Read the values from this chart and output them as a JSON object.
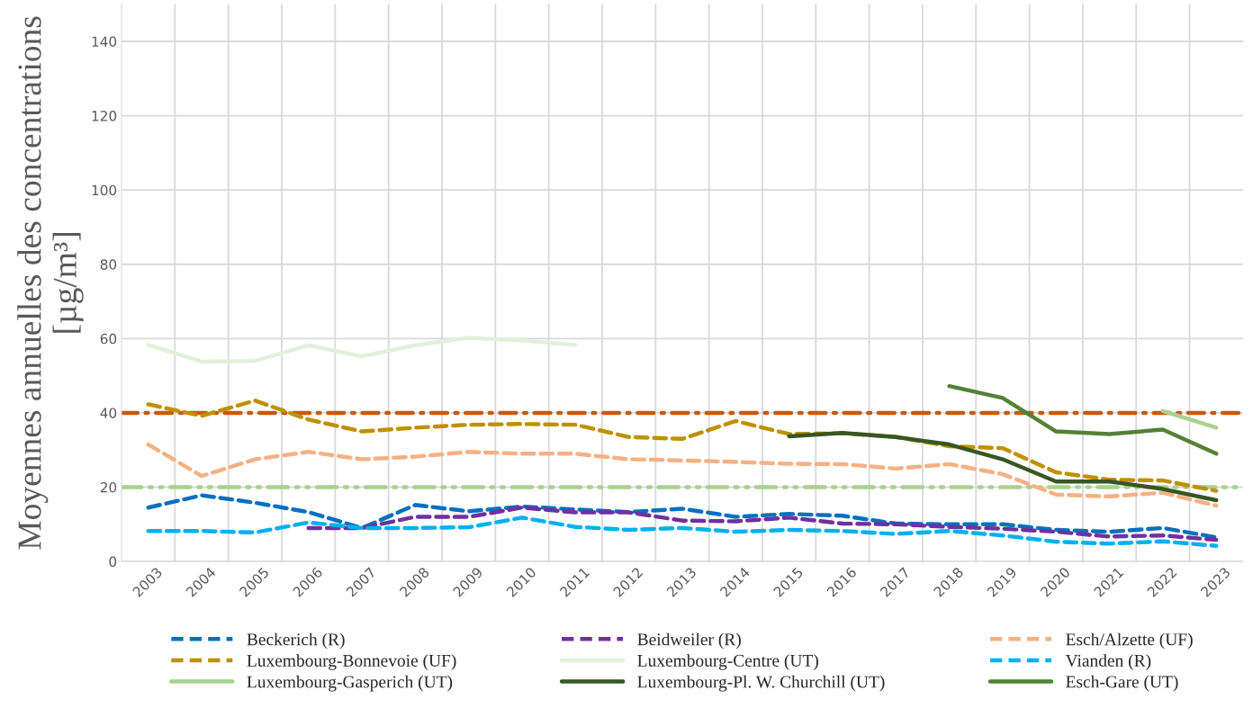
{
  "chart_data": {
    "type": "line",
    "ylabel": "Moyennes annuelles des concentrations\n[µg/m³]",
    "categories": [
      "2003",
      "2004",
      "2005",
      "2006",
      "2007",
      "2008",
      "2009",
      "2010",
      "2011",
      "2012",
      "2013",
      "2014",
      "2015",
      "2016",
      "2017",
      "2018",
      "2019",
      "2020",
      "2021",
      "2022",
      "2023"
    ],
    "ylim": [
      0,
      150
    ],
    "yticks": [
      0,
      20,
      40,
      60,
      80,
      100,
      120,
      140
    ],
    "grid": true,
    "legend": "bottom",
    "series": [
      {
        "name": "Beckerich (R)",
        "color": "#0070c0",
        "line_style": "dashed",
        "values": [
          14.5,
          17.8,
          15.8,
          13.3,
          9,
          15.2,
          13.5,
          14.8,
          14,
          13.3,
          14.2,
          12,
          12.8,
          12.3,
          10.2,
          10,
          10,
          8.5,
          8,
          9,
          6.5
        ]
      },
      {
        "name": "Beidweiler (R)",
        "color": "#7030a0",
        "line_style": "dashed",
        "values": [
          null,
          null,
          null,
          9,
          9,
          12,
          12,
          14.5,
          13.2,
          13.2,
          11,
          10.8,
          11.8,
          10.2,
          10,
          9.3,
          8.8,
          8,
          6.7,
          7,
          5.8
        ]
      },
      {
        "name": "Esch/Alzette (UF)",
        "color": "#f4b183",
        "line_style": "dashed",
        "values": [
          31.5,
          23,
          27.5,
          29.5,
          27.5,
          28.2,
          29.5,
          29,
          29,
          27.5,
          27.2,
          26.8,
          26.3,
          26.2,
          25,
          26.2,
          23.5,
          18,
          17.5,
          18.5,
          15
        ]
      },
      {
        "name": "Luxembourg-Bonnevoie (UF)",
        "color": "#bf9000",
        "line_style": "dashed",
        "values": [
          42.3,
          39.2,
          43.3,
          38.2,
          35,
          36,
          36.8,
          37,
          36.8,
          33.5,
          33,
          37.8,
          34.3,
          34.5,
          33.5,
          31,
          30.5,
          24,
          22,
          21.8,
          19
        ]
      },
      {
        "name": "Luxembourg-Centre (UT)",
        "color": "#e2f0d9",
        "line_style": "solid",
        "values": [
          58.3,
          53.8,
          54,
          58.2,
          55.2,
          58.2,
          60.2,
          59.5,
          58.3,
          null,
          null,
          null,
          null,
          null,
          null,
          null,
          null,
          null,
          null,
          null,
          null
        ]
      },
      {
        "name": "Vianden (R)",
        "color": "#00b0f0",
        "line_style": "dashed",
        "values": [
          8.2,
          8.2,
          7.8,
          10.5,
          9,
          9,
          9.2,
          11.8,
          9.3,
          8.5,
          9,
          8,
          8.5,
          8.2,
          7.4,
          8.2,
          7,
          5.3,
          4.8,
          5.4,
          4.2
        ]
      },
      {
        "name": "Luxembourg-Gasperich (UT)",
        "color": "#a9d18e",
        "line_style": "solid",
        "values": [
          null,
          null,
          null,
          null,
          null,
          null,
          null,
          null,
          null,
          null,
          null,
          null,
          null,
          null,
          null,
          null,
          null,
          null,
          null,
          40.5,
          36
        ]
      },
      {
        "name": "Luxembourg-Pl. W. Churchill (UT)",
        "color": "#375623",
        "line_style": "solid",
        "values": [
          null,
          null,
          null,
          null,
          null,
          null,
          null,
          null,
          null,
          null,
          null,
          null,
          33.7,
          34.6,
          33.5,
          31.5,
          27.5,
          21.5,
          21.5,
          19.5,
          16.5
        ]
      },
      {
        "name": "Esch-Gare (UT)",
        "color": "#548235",
        "line_style": "solid",
        "values": [
          null,
          null,
          null,
          null,
          null,
          null,
          null,
          null,
          null,
          null,
          null,
          null,
          null,
          null,
          null,
          47.2,
          44,
          35,
          34.3,
          35.5,
          29
        ]
      }
    ],
    "ref_lines": [
      {
        "axis": "y",
        "value": 40,
        "color": "#c55a11",
        "line_style": "dashdot"
      },
      {
        "axis": "y",
        "value": 20,
        "color": "#a9d18e",
        "line_style": "dashdotdot"
      }
    ]
  }
}
